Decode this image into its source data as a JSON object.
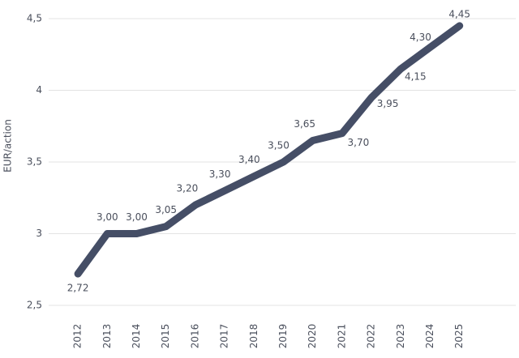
{
  "chart_data": {
    "type": "line",
    "y_label": "EUR/action",
    "categories": [
      "2012",
      "2013",
      "2014",
      "2015",
      "2016",
      "2017",
      "2018",
      "2019",
      "2020",
      "2021",
      "2022",
      "2023",
      "2024",
      "2025"
    ],
    "series": [
      {
        "color": "#454e66",
        "values": [
          2.72,
          3.0,
          3.0,
          3.05,
          3.2,
          3.3,
          3.4,
          3.5,
          3.65,
          3.7,
          3.95,
          4.15,
          4.3,
          4.45
        ],
        "value_labels": [
          "2,72",
          "3,00",
          "3,00",
          "3,05",
          "3,20",
          "3,30",
          "3,40",
          "3,50",
          "3,65",
          "3,70",
          "3,95",
          "4,15",
          "4,30",
          "4,45"
        ]
      }
    ],
    "ylim": [
      2.5,
      4.5
    ],
    "yticks": [
      {
        "value": 2.5,
        "label": "2,5"
      },
      3,
      {
        "value": 3.5,
        "label": "3,5"
      },
      4,
      {
        "value": 4.5,
        "label": "4,5"
      }
    ],
    "grid": true
  }
}
